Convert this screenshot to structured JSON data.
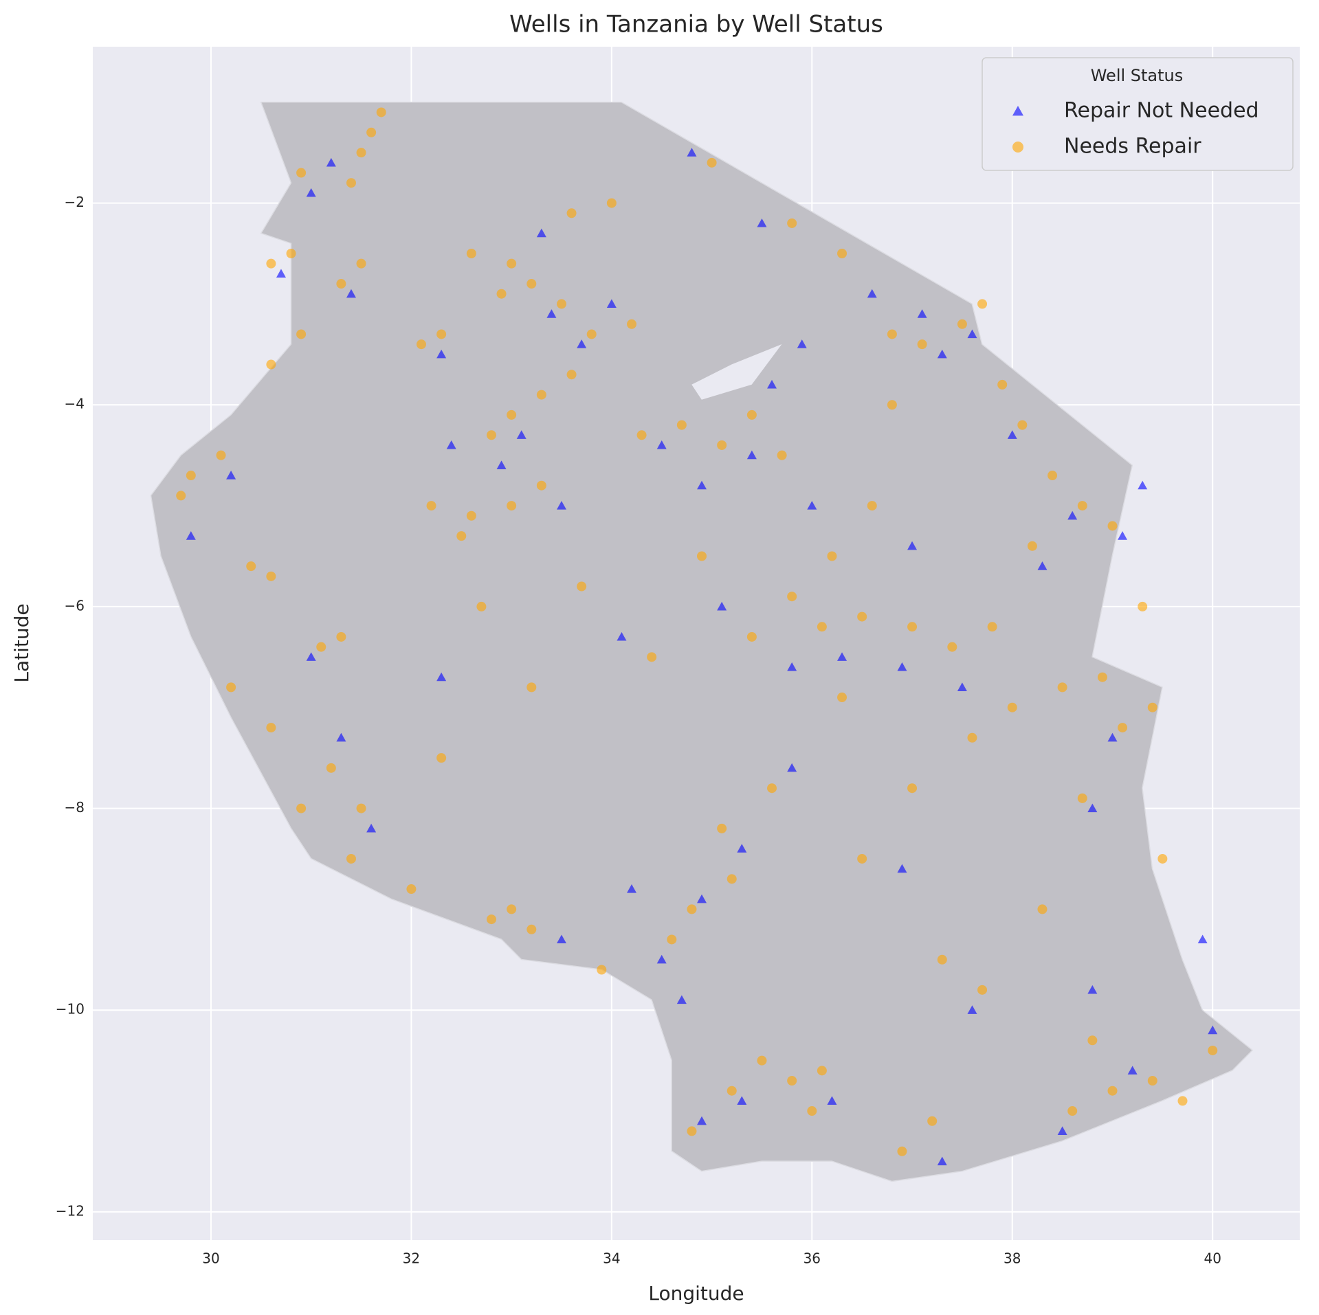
{
  "chart_data": {
    "type": "scatter",
    "title": "Wells in Tanzania by Well Status",
    "x_label": "Longitude",
    "y_label": "Latitude",
    "xlim": [
      28.82,
      40.87
    ],
    "ylim": [
      -12.28,
      -0.45
    ],
    "xticks": [
      30,
      32,
      34,
      36,
      38,
      40
    ],
    "yticks": [
      {
        "value": -12,
        "label": "−12"
      },
      {
        "value": -10,
        "label": "−10"
      },
      {
        "value": -8,
        "label": "−8"
      },
      {
        "value": -6,
        "label": "−6"
      },
      {
        "value": -4,
        "label": "−4"
      },
      {
        "value": -2,
        "label": "−2"
      }
    ],
    "grid": true,
    "legend": "upper right",
    "legend_title": "Well Status",
    "series": [
      {
        "name": "Repair Not Needed",
        "color": "#0000ff",
        "marker": "triangle",
        "x": [
          31.2,
          31.0,
          30.7,
          31.4,
          32.3,
          33.4,
          33.7,
          34.0,
          33.1,
          32.9,
          32.4,
          34.5,
          34.9,
          35.4,
          35.6,
          35.9,
          35.5,
          34.8,
          37.1,
          37.3,
          37.6,
          38.0,
          38.6,
          39.1,
          38.3,
          35.8,
          36.3,
          36.9,
          37.5,
          39.0,
          38.8,
          35.8,
          35.3,
          34.9,
          34.5,
          34.2,
          34.7,
          33.5,
          31.3,
          31.6,
          31.0,
          30.2,
          29.8,
          35.3,
          34.9,
          36.2,
          37.3,
          38.5,
          39.2,
          40.0,
          39.9,
          38.8,
          37.6,
          36.9,
          35.1,
          34.1,
          32.3,
          33.5,
          37.0,
          39.3,
          36.0,
          33.3,
          36.6
        ],
        "y": [
          -1.6,
          -1.9,
          -2.7,
          -2.9,
          -3.5,
          -3.1,
          -3.4,
          -3.0,
          -4.3,
          -4.6,
          -4.4,
          -4.4,
          -4.8,
          -4.5,
          -3.8,
          -3.4,
          -2.2,
          -1.5,
          -3.1,
          -3.5,
          -3.3,
          -4.3,
          -5.1,
          -5.3,
          -5.6,
          -6.6,
          -6.5,
          -6.6,
          -6.8,
          -7.3,
          -8.0,
          -7.6,
          -8.4,
          -8.9,
          -9.5,
          -8.8,
          -9.9,
          -9.3,
          -7.3,
          -8.2,
          -6.5,
          -4.7,
          -5.3,
          -10.9,
          -11.1,
          -10.9,
          -11.5,
          -11.2,
          -10.6,
          -10.2,
          -9.3,
          -9.8,
          -10.0,
          -8.6,
          -6.0,
          -6.3,
          -6.7,
          -5.0,
          -5.4,
          -4.8,
          -5.0,
          -2.3,
          -2.9
        ]
      },
      {
        "name": "Needs Repair",
        "color": "#ffa500",
        "marker": "circle",
        "x": [
          31.5,
          31.6,
          31.4,
          30.9,
          31.7,
          30.6,
          30.8,
          31.3,
          31.5,
          32.1,
          32.3,
          33.0,
          33.2,
          33.5,
          33.8,
          34.2,
          33.0,
          33.3,
          32.8,
          33.6,
          32.6,
          32.9,
          33.6,
          34.0,
          35.0,
          30.6,
          30.9,
          29.8,
          29.7,
          30.1,
          30.4,
          30.6,
          31.1,
          31.3,
          32.2,
          32.6,
          33.0,
          33.3,
          32.5,
          34.3,
          34.7,
          35.1,
          35.4,
          35.7,
          36.2,
          35.8,
          36.1,
          36.5,
          37.0,
          37.4,
          37.8,
          36.8,
          37.1,
          37.5,
          37.7,
          37.9,
          38.1,
          38.4,
          38.7,
          39.0,
          38.9,
          39.1,
          39.4,
          38.5,
          38.0,
          37.6,
          37.0,
          36.3,
          35.4,
          35.6,
          35.1,
          34.8,
          34.6,
          35.2,
          33.0,
          33.2,
          32.8,
          33.9,
          31.2,
          31.5,
          31.4,
          32.0,
          30.6,
          30.9,
          35.5,
          35.8,
          36.1,
          35.2,
          34.8,
          37.2,
          36.9,
          38.6,
          39.0,
          39.4,
          39.7,
          40.0,
          38.8,
          38.3,
          39.5,
          38.7,
          36.5,
          37.7,
          36.0,
          34.4,
          33.2,
          32.3,
          34.9,
          36.6,
          36.8,
          38.2,
          37.3,
          30.2,
          32.7,
          33.7,
          36.3,
          35.8,
          39.3
        ],
        "y": [
          -1.5,
          -1.3,
          -1.8,
          -1.7,
          -1.1,
          -2.6,
          -2.5,
          -2.8,
          -2.6,
          -3.4,
          -3.3,
          -2.6,
          -2.8,
          -3.0,
          -3.3,
          -3.2,
          -4.1,
          -3.9,
          -4.3,
          -3.7,
          -2.5,
          -2.9,
          -2.1,
          -2.0,
          -1.6,
          -3.6,
          -3.3,
          -4.7,
          -4.9,
          -4.5,
          -5.6,
          -5.7,
          -6.4,
          -6.3,
          -5.0,
          -5.1,
          -5.0,
          -4.8,
          -5.3,
          -4.3,
          -4.2,
          -4.4,
          -4.1,
          -4.5,
          -5.5,
          -5.9,
          -6.2,
          -6.1,
          -6.2,
          -6.4,
          -6.2,
          -3.3,
          -3.4,
          -3.2,
          -3.0,
          -3.8,
          -4.2,
          -4.7,
          -5.0,
          -5.2,
          -6.7,
          -7.2,
          -7.0,
          -6.8,
          -7.0,
          -7.3,
          -7.8,
          -6.9,
          -6.3,
          -7.8,
          -8.2,
          -9.0,
          -9.3,
          -8.7,
          -9.0,
          -9.2,
          -9.1,
          -9.6,
          -7.6,
          -8.0,
          -8.5,
          -8.8,
          -7.2,
          -8.0,
          -10.5,
          -10.7,
          -10.6,
          -10.8,
          -11.2,
          -11.1,
          -11.4,
          -11.0,
          -10.8,
          -10.7,
          -10.9,
          -10.4,
          -10.3,
          -9.0,
          -8.5,
          -7.9,
          -8.5,
          -9.8,
          -11.0,
          -6.5,
          -6.8,
          -7.5,
          -5.5,
          -5.0,
          -4.0,
          -5.4,
          -9.5,
          -6.8,
          -6.0,
          -5.8,
          -2.5,
          -2.2,
          -6.0
        ]
      }
    ]
  }
}
